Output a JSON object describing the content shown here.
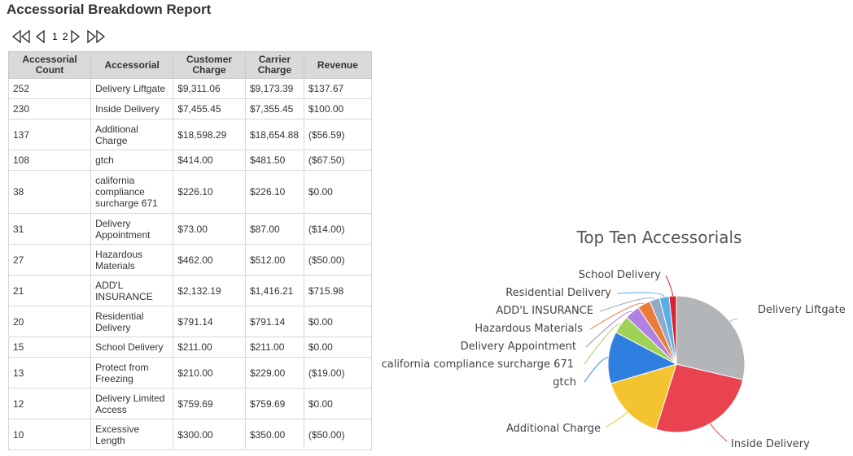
{
  "report": {
    "title": "Accessorial Breakdown Report"
  },
  "pager": {
    "page_1": "1",
    "page_2": "2"
  },
  "table": {
    "headers": [
      "Accessorial Count",
      "Accessorial",
      "Customer Charge",
      "Carrier Charge",
      "Revenue"
    ],
    "rows": [
      [
        "252",
        "Delivery Liftgate",
        "$9,311.06",
        "$9,173.39",
        "$137.67"
      ],
      [
        "230",
        "Inside Delivery",
        "$7,455.45",
        "$7,355.45",
        "$100.00"
      ],
      [
        "137",
        "Additional Charge",
        "$18,598.29",
        "$18,654.88",
        "($56.59)"
      ],
      [
        "108",
        "gtch",
        "$414.00",
        "$481.50",
        "($67.50)"
      ],
      [
        "38",
        "california compliance surcharge 671",
        "$226.10",
        "$226.10",
        "$0.00"
      ],
      [
        "31",
        "Delivery Appointment",
        "$73.00",
        "$87.00",
        "($14.00)"
      ],
      [
        "27",
        "Hazardous Materials",
        "$462.00",
        "$512.00",
        "($50.00)"
      ],
      [
        "21",
        "ADD'L INSURANCE",
        "$2,132.19",
        "$1,416.21",
        "$715.98"
      ],
      [
        "20",
        "Residential Delivery",
        "$791.14",
        "$791.14",
        "$0.00"
      ],
      [
        "15",
        "School Delivery",
        "$211.00",
        "$211.00",
        "$0.00"
      ],
      [
        "13",
        "Protect from Freezing",
        "$210.00",
        "$229.00",
        "($19.00)"
      ],
      [
        "12",
        "Delivery Limited Access",
        "$759.69",
        "$759.69",
        "$0.00"
      ],
      [
        "10",
        "Excessive Length",
        "$300.00",
        "$350.00",
        "($50.00)"
      ]
    ]
  },
  "chart_data": {
    "type": "pie",
    "title": "Top Ten Accessorials",
    "categories": [
      "Delivery Liftgate",
      "Inside Delivery",
      "Additional Charge",
      "gtch",
      "california compliance surcharge 671",
      "Delivery Appointment",
      "Hazardous Materials",
      "ADD'L INSURANCE",
      "Residential Delivery",
      "School Delivery"
    ],
    "values": [
      252,
      230,
      137,
      108,
      38,
      31,
      27,
      21,
      20,
      15
    ],
    "colors": [
      "#b3b6b9",
      "#e8434f",
      "#f4c430",
      "#2f7fe0",
      "#9fd255",
      "#b081e0",
      "#ea7c3b",
      "#8fa9c9",
      "#5aaee8",
      "#d9232e"
    ],
    "legend": "labels-outside"
  }
}
